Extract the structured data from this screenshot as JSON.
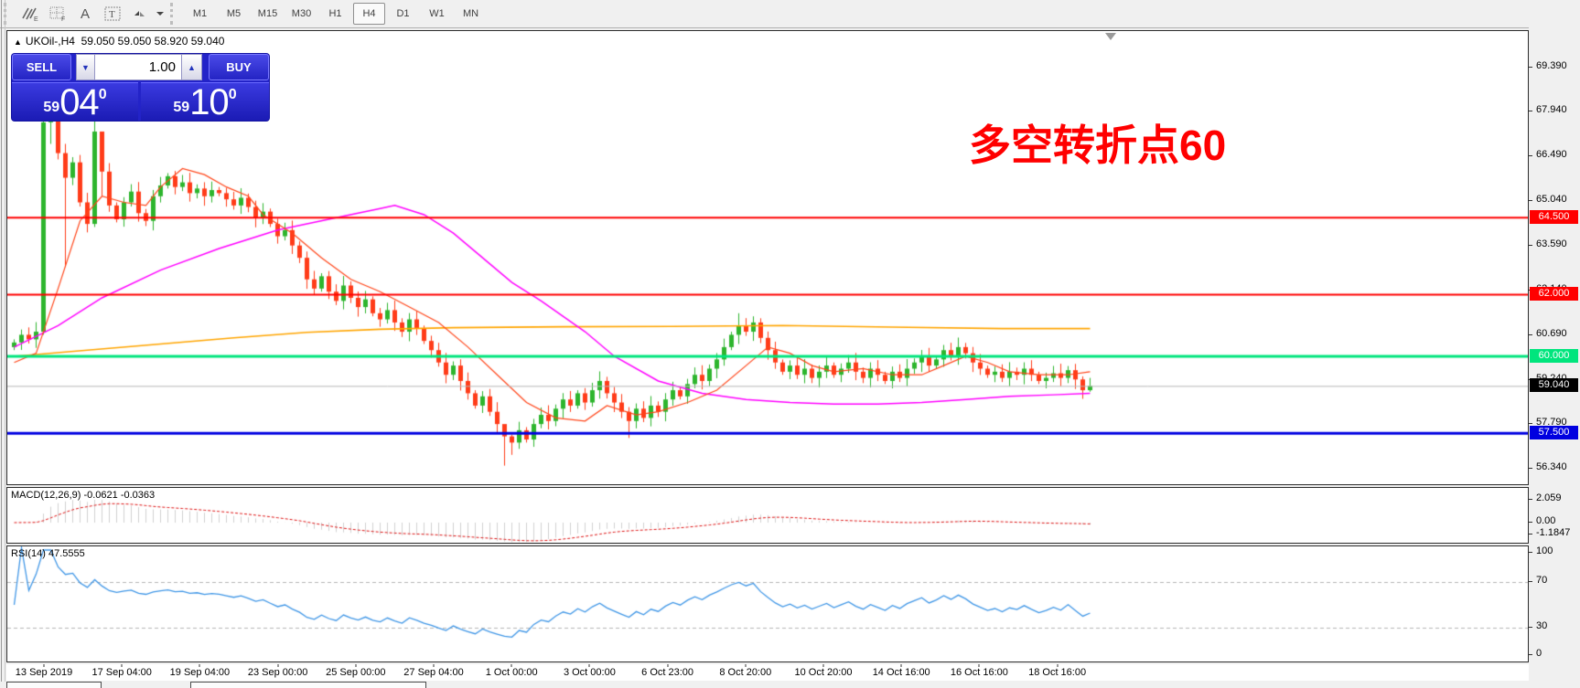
{
  "toolbar": {
    "tools": [
      {
        "name": "expert-advisor",
        "label": "E"
      },
      {
        "name": "grid",
        "label": "F"
      },
      {
        "name": "text-label",
        "label": "A"
      },
      {
        "name": "text-box",
        "label": "T"
      },
      {
        "name": "cursor-tool",
        "label": ""
      }
    ],
    "timeframes": [
      "M1",
      "M5",
      "M15",
      "M30",
      "H1",
      "H4",
      "D1",
      "W1",
      "MN"
    ],
    "active_timeframe": "H4"
  },
  "chart": {
    "title_symbol": "UKOil-,H4",
    "title_ohlc": "59.050 59.050 58.920 59.040",
    "quote_panel": {
      "sell_label": "SELL",
      "buy_label": "BUY",
      "volume": "1.00",
      "sell_price_small": "59",
      "sell_price_big": "04",
      "sell_price_sup": "0",
      "buy_price_small": "59",
      "buy_price_big": "10",
      "buy_price_sup": "0"
    },
    "annotation": {
      "text": "多空转折点60",
      "color": "#ff0000"
    }
  },
  "chart_data": [
    {
      "type": "candlestick",
      "symbol": "UKOil-,H4",
      "timeframe": "H4",
      "bull_color": "#2db52d",
      "bear_color": "#ff3c19",
      "y_axis_ticks": [
        {
          "price": 69.39,
          "label": "69.390"
        },
        {
          "price": 67.94,
          "label": "67.940"
        },
        {
          "price": 66.49,
          "label": "66.490"
        },
        {
          "price": 65.04,
          "label": "65.040"
        },
        {
          "price": 63.59,
          "label": "63.590"
        },
        {
          "price": 62.14,
          "label": "62.140"
        },
        {
          "price": 60.69,
          "label": "60.690"
        },
        {
          "price": 59.24,
          "label": "59.240"
        },
        {
          "price": 57.79,
          "label": "57.790"
        },
        {
          "price": 56.34,
          "label": "56.340"
        }
      ],
      "x_labels": [
        "13 Sep 2019",
        "17 Sep 04:00",
        "19 Sep 04:00",
        "23 Sep 00:00",
        "25 Sep 00:00",
        "27 Sep 04:00",
        "1 Oct 00:00",
        "3 Oct 00:00",
        "6 Oct 23:00",
        "8 Oct 20:00",
        "10 Oct 20:00",
        "14 Oct 16:00",
        "16 Oct 16:00",
        "18 Oct 16:00"
      ],
      "first_open": 60.3,
      "closes": [
        60.45,
        60.7,
        60.55,
        60.8,
        67.6,
        68.0,
        66.6,
        65.8,
        66.3,
        65.0,
        64.3,
        67.3,
        66.0,
        64.9,
        64.45,
        65.0,
        65.35,
        64.65,
        64.4,
        65.2,
        65.55,
        65.85,
        65.5,
        65.65,
        65.3,
        65.45,
        65.2,
        65.4,
        65.3,
        65.1,
        64.9,
        65.15,
        64.85,
        64.5,
        64.7,
        64.3,
        63.9,
        64.1,
        63.6,
        63.2,
        62.5,
        62.2,
        62.6,
        62.1,
        61.8,
        62.3,
        61.9,
        61.6,
        61.85,
        61.4,
        61.2,
        61.5,
        61.1,
        60.8,
        61.2,
        60.9,
        60.5,
        60.2,
        59.8,
        59.4,
        59.7,
        59.2,
        58.8,
        58.4,
        58.7,
        58.2,
        57.8,
        57.4,
        57.2,
        57.6,
        57.3,
        57.8,
        58.1,
        57.9,
        58.3,
        58.6,
        58.4,
        58.8,
        58.5,
        58.9,
        59.2,
        58.8,
        58.5,
        58.2,
        57.9,
        58.3,
        58.0,
        58.4,
        58.2,
        58.6,
        58.9,
        58.7,
        59.1,
        59.4,
        59.2,
        59.6,
        59.9,
        60.3,
        60.7,
        61.0,
        60.8,
        61.1,
        60.6,
        60.2,
        59.8,
        59.5,
        59.7,
        59.4,
        59.6,
        59.3,
        59.5,
        59.7,
        59.4,
        59.6,
        59.8,
        59.5,
        59.3,
        59.6,
        59.4,
        59.2,
        59.5,
        59.3,
        59.6,
        59.8,
        60.0,
        59.7,
        59.9,
        60.2,
        60.0,
        60.3,
        60.1,
        59.8,
        59.6,
        59.4,
        59.5,
        59.3,
        59.5,
        59.4,
        59.6,
        59.4,
        59.2,
        59.3,
        59.45,
        59.3,
        59.55,
        59.25,
        58.9,
        59.04
      ],
      "wick_overrides": {
        "4": [
          68.65,
          60.7
        ],
        "5": [
          68.8,
          66.9
        ],
        "7": [
          66.9,
          62.9
        ],
        "11": [
          67.95,
          64.2
        ],
        "12": [
          67.1,
          65.2
        ],
        "67": [
          57.6,
          56.45
        ],
        "68": [
          57.45,
          56.8
        ],
        "84": [
          58.35,
          57.35
        ],
        "99": [
          61.4,
          60.4
        ],
        "101": [
          61.3,
          60.5
        ],
        "146": [
          59.35,
          58.62
        ],
        "147": [
          59.3,
          58.85
        ]
      },
      "levels": [
        {
          "price": 64.5,
          "label": "64.500",
          "color": "#ff0000",
          "thickness": 2
        },
        {
          "price": 62.0,
          "label": "62.000",
          "color": "#ff0000",
          "thickness": 2
        },
        {
          "price": 60.0,
          "label": "60.000",
          "color": "#00e57d",
          "thickness": 3
        },
        {
          "price": 57.5,
          "label": "57.500",
          "color": "#0000e0",
          "thickness": 3
        }
      ],
      "current_price": {
        "price": 59.04,
        "label": "59.040",
        "line_color": "#b8b8b8",
        "badge_color": "#000000"
      },
      "moving_averages": [
        {
          "name": "fast-ma",
          "color": "#ff4519",
          "points": [
            [
              0,
              59.8
            ],
            [
              3,
              60.1
            ],
            [
              6,
              62.2
            ],
            [
              9,
              64.4
            ],
            [
              12,
              65.2
            ],
            [
              15,
              65.0
            ],
            [
              18,
              64.9
            ],
            [
              20,
              65.5
            ],
            [
              23,
              66.1
            ],
            [
              26,
              65.9
            ],
            [
              29,
              65.5
            ],
            [
              32,
              65.2
            ],
            [
              34,
              64.6
            ],
            [
              38,
              64.0
            ],
            [
              42,
              63.2
            ],
            [
              46,
              62.5
            ],
            [
              50,
              62.1
            ],
            [
              54,
              61.6
            ],
            [
              58,
              61.1
            ],
            [
              62,
              60.3
            ],
            [
              66,
              59.4
            ],
            [
              70,
              58.5
            ],
            [
              74,
              58.0
            ],
            [
              78,
              57.9
            ],
            [
              81,
              58.4
            ],
            [
              85,
              58.1
            ],
            [
              88,
              58.2
            ],
            [
              92,
              58.5
            ],
            [
              96,
              58.9
            ],
            [
              100,
              59.7
            ],
            [
              103,
              60.3
            ],
            [
              106,
              60.1
            ],
            [
              109,
              59.7
            ],
            [
              112,
              59.5
            ],
            [
              116,
              59.6
            ],
            [
              120,
              59.4
            ],
            [
              124,
              59.4
            ],
            [
              127,
              59.7
            ],
            [
              130,
              60.0
            ],
            [
              133,
              59.8
            ],
            [
              136,
              59.5
            ],
            [
              140,
              59.4
            ],
            [
              144,
              59.4
            ],
            [
              147,
              59.5
            ]
          ]
        },
        {
          "name": "mid-ma",
          "color": "#ff00ff",
          "points": [
            [
              0,
              60.3
            ],
            [
              6,
              61.0
            ],
            [
              12,
              61.9
            ],
            [
              20,
              62.8
            ],
            [
              28,
              63.5
            ],
            [
              36,
              64.1
            ],
            [
              44,
              64.5
            ],
            [
              50,
              64.8
            ],
            [
              52,
              64.9
            ],
            [
              56,
              64.6
            ],
            [
              60,
              64.0
            ],
            [
              64,
              63.2
            ],
            [
              68,
              62.4
            ],
            [
              72,
              61.8
            ],
            [
              78,
              60.8
            ],
            [
              82,
              60.0
            ],
            [
              88,
              59.2
            ],
            [
              94,
              58.8
            ],
            [
              100,
              58.6
            ],
            [
              106,
              58.5
            ],
            [
              112,
              58.45
            ],
            [
              118,
              58.45
            ],
            [
              124,
              58.5
            ],
            [
              130,
              58.6
            ],
            [
              136,
              58.7
            ],
            [
              142,
              58.75
            ],
            [
              147,
              58.8
            ]
          ]
        },
        {
          "name": "slow-ma",
          "color": "#ffa500",
          "points": [
            [
              0,
              60.0
            ],
            [
              10,
              60.2
            ],
            [
              20,
              60.4
            ],
            [
              30,
              60.6
            ],
            [
              40,
              60.78
            ],
            [
              50,
              60.88
            ],
            [
              60,
              60.93
            ],
            [
              75,
              60.96
            ],
            [
              90,
              60.97
            ],
            [
              105,
              61.0
            ],
            [
              120,
              60.95
            ],
            [
              135,
              60.9
            ],
            [
              147,
              60.9
            ]
          ]
        }
      ]
    },
    {
      "type": "macd",
      "label": "MACD(12,26,9) -0.0621 -0.0363",
      "params": [
        12,
        26,
        9
      ],
      "main_value": -0.0621,
      "signal_value": -0.0363,
      "scale_labels": [
        "2.059",
        "0.00",
        "-1.1847"
      ],
      "histogram_color": "#d0d0d0",
      "signal_color": "#dd1111"
    },
    {
      "type": "rsi",
      "label": "RSI(14) 47.5555",
      "period": 14,
      "value": 47.5555,
      "scale_labels": [
        "100",
        "70",
        "30",
        "0"
      ],
      "guide_levels": [
        70,
        30
      ],
      "line_color": "#3f96e6",
      "guide_color": "#b4b4b4"
    }
  ]
}
